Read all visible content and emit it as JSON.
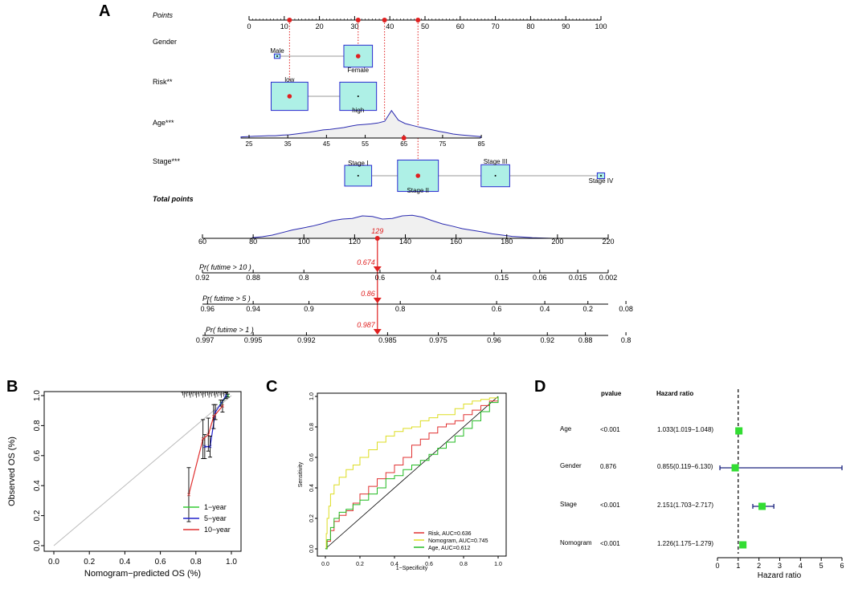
{
  "panel_labels": [
    "A",
    "B",
    "C",
    "D"
  ],
  "chart_data": [
    {
      "type": "nomogram",
      "panel": "A",
      "points_axis": {
        "label": "Points",
        "range": [
          0,
          100
        ],
        "ticks": [
          0,
          10,
          20,
          30,
          40,
          50,
          60,
          70,
          80,
          90,
          100
        ],
        "selected": [
          11.5,
          31,
          38.5,
          48
        ]
      },
      "variables": [
        {
          "name": "Gender",
          "levels": [
            {
              "label": "Male",
              "points": 8,
              "size": 0.02
            },
            {
              "label": "Female",
              "points": 31,
              "size": 0.3
            }
          ],
          "selected": "Female"
        },
        {
          "name": "Risk**",
          "levels": [
            {
              "label": "low",
              "points": 11.5,
              "size": 0.4
            },
            {
              "label": "high",
              "points": 31,
              "size": 0.4
            }
          ],
          "selected": "low"
        },
        {
          "name": "Age***",
          "axis": {
            "ticks": [
              25,
              35,
              45,
              55,
              65,
              75,
              85
            ],
            "points_at_min": 0,
            "points_at_max": 66
          },
          "selected": 65,
          "density": [
            0.04,
            0.05,
            0.06,
            0.07,
            0.08,
            0.08,
            0.1,
            0.11,
            0.14,
            0.17,
            0.2,
            0.24,
            0.28,
            0.3,
            0.33,
            0.36,
            0.41,
            0.45,
            0.47,
            0.49,
            0.52,
            0.58,
            0.95,
            0.62,
            0.5,
            0.44,
            0.38,
            0.33,
            0.28,
            0.23,
            0.19,
            0.14,
            0.11,
            0.09,
            0.07,
            0.05
          ]
        },
        {
          "name": "Stage***",
          "levels": [
            {
              "label": "Stage I",
              "points": 31,
              "size": 0.28
            },
            {
              "label": "Stage II",
              "points": 48,
              "size": 0.45
            },
            {
              "label": "Stage III",
              "points": 70,
              "size": 0.3
            },
            {
              "label": "Stage IV",
              "points": 100,
              "size": 0.04
            }
          ],
          "selected": "Stage II"
        }
      ],
      "total_points": {
        "label": "Total points",
        "ticks": [
          60,
          80,
          100,
          120,
          140,
          160,
          180,
          200,
          220
        ],
        "range": [
          60,
          220
        ],
        "selected": 129,
        "selected_label": "129",
        "density": [
          0.02,
          0.05,
          0.1,
          0.18,
          0.26,
          0.32,
          0.38,
          0.46,
          0.55,
          0.6,
          0.62,
          0.7,
          0.68,
          0.6,
          0.62,
          0.7,
          0.72,
          0.66,
          0.55,
          0.45,
          0.38,
          0.3,
          0.25,
          0.2,
          0.14,
          0.1,
          0.06,
          0.04,
          0.02,
          0.01,
          0.0,
          0.0
        ]
      },
      "probability_axes": [
        {
          "label": "Pr( futime > 10 )",
          "ticks": [
            {
              "v": "0.92",
              "t": 60
            },
            {
              "v": "0.88",
              "t": 80
            },
            {
              "v": "0.8",
              "t": 100
            },
            {
              "v": "0.6",
              "t": 130
            },
            {
              "v": "0.4",
              "t": 152
            },
            {
              "v": "0.15",
              "t": 178
            },
            {
              "v": "0.06",
              "t": 193
            },
            {
              "v": "0.015",
              "t": 208
            },
            {
              "v": "0.002",
              "t": 220
            }
          ],
          "selected_label": "0.674"
        },
        {
          "label": "Pr( futime > 5 )",
          "ticks": [
            {
              "v": "0.96",
              "t": 62
            },
            {
              "v": "0.94",
              "t": 80
            },
            {
              "v": "0.9",
              "t": 102
            },
            {
              "v": "0.8",
              "t": 138
            },
            {
              "v": "0.6",
              "t": 176
            },
            {
              "v": "0.4",
              "t": 195
            },
            {
              "v": "0.2",
              "t": 212
            },
            {
              "v": "0.08",
              "t": 227
            }
          ],
          "selected_label": "0.86"
        },
        {
          "label": "Pr( futime > 1 )",
          "ticks": [
            {
              "v": "0.997",
              "t": 61
            },
            {
              "v": "0.995",
              "t": 80
            },
            {
              "v": "0.992",
              "t": 101
            },
            {
              "v": "0.985",
              "t": 133
            },
            {
              "v": "0.975",
              "t": 153
            },
            {
              "v": "0.96",
              "t": 175
            },
            {
              "v": "0.92",
              "t": 196
            },
            {
              "v": "0.88",
              "t": 211
            },
            {
              "v": "0.8",
              "t": 227
            }
          ],
          "selected_label": "0.987"
        }
      ]
    },
    {
      "type": "line",
      "panel": "B",
      "xlabel": "Nomogram−predicted OS (%)",
      "ylabel": "Observed OS (%)",
      "xlim": [
        0,
        1
      ],
      "ylim": [
        0,
        1
      ],
      "xticks": [
        "0.0",
        "0.2",
        "0.4",
        "0.6",
        "0.8",
        "1.0"
      ],
      "yticks": [
        "0.0",
        "0.2",
        "0.4",
        "0.6",
        "0.8",
        "1.0"
      ],
      "series": [
        {
          "name": "1−year",
          "color": "#33cc33",
          "x": [
            0.94,
            0.98
          ],
          "y": [
            0.95,
            1.0
          ],
          "err": [
            0.02,
            0.01
          ]
        },
        {
          "name": "5−year",
          "color": "#2222cc",
          "x": [
            0.85,
            0.88,
            0.91,
            0.97
          ],
          "y": [
            0.66,
            0.66,
            0.89,
            1.0
          ],
          "err": [
            0.08,
            0.07,
            0.05,
            0.02
          ]
        },
        {
          "name": "10−year",
          "color": "#e03030",
          "x": [
            0.76,
            0.84,
            0.87,
            0.9,
            0.95
          ],
          "y": [
            0.34,
            0.71,
            0.74,
            0.86,
            0.93
          ],
          "err": [
            0.18,
            0.13,
            0.11,
            0.08,
            0.04
          ]
        }
      ],
      "legend_position": "bottom-right"
    },
    {
      "type": "line",
      "panel": "C",
      "xlabel": "1−Specificity",
      "ylabel": "Sensitivity",
      "xlim": [
        0,
        1
      ],
      "ylim": [
        0,
        1
      ],
      "xticks": [
        "0.0",
        "0.2",
        "0.4",
        "0.6",
        "0.8",
        "1.0"
      ],
      "yticks": [
        "0.0",
        "0.2",
        "0.4",
        "0.6",
        "0.8",
        "1.0"
      ],
      "series": [
        {
          "name": "Risk, AUC=0.636",
          "color": "#e03030",
          "x": [
            0,
            0.01,
            0.03,
            0.05,
            0.08,
            0.12,
            0.16,
            0.2,
            0.25,
            0.3,
            0.35,
            0.4,
            0.45,
            0.5,
            0.55,
            0.6,
            0.65,
            0.7,
            0.75,
            0.8,
            0.85,
            0.9,
            0.95,
            1.0
          ],
          "y": [
            0,
            0.05,
            0.12,
            0.18,
            0.22,
            0.25,
            0.3,
            0.36,
            0.41,
            0.46,
            0.5,
            0.55,
            0.6,
            0.68,
            0.72,
            0.76,
            0.8,
            0.82,
            0.84,
            0.88,
            0.91,
            0.94,
            0.97,
            1.0
          ]
        },
        {
          "name": "Nomogram, AUC=0.745",
          "color": "#dddd22",
          "x": [
            0,
            0.005,
            0.01,
            0.02,
            0.03,
            0.05,
            0.08,
            0.12,
            0.16,
            0.2,
            0.25,
            0.3,
            0.35,
            0.4,
            0.45,
            0.5,
            0.55,
            0.6,
            0.65,
            0.7,
            0.75,
            0.8,
            0.85,
            0.9,
            0.95,
            1.0
          ],
          "y": [
            0,
            0.1,
            0.2,
            0.28,
            0.36,
            0.42,
            0.47,
            0.52,
            0.55,
            0.6,
            0.65,
            0.7,
            0.74,
            0.77,
            0.79,
            0.8,
            0.84,
            0.86,
            0.88,
            0.88,
            0.92,
            0.95,
            0.97,
            0.98,
            0.99,
            1.0
          ]
        },
        {
          "name": "Age, AUC=0.612",
          "color": "#22bb22",
          "x": [
            0,
            0.01,
            0.03,
            0.05,
            0.08,
            0.12,
            0.16,
            0.2,
            0.25,
            0.3,
            0.35,
            0.4,
            0.45,
            0.5,
            0.55,
            0.6,
            0.65,
            0.7,
            0.75,
            0.8,
            0.85,
            0.9,
            0.95,
            1.0
          ],
          "y": [
            0,
            0.06,
            0.14,
            0.2,
            0.24,
            0.26,
            0.29,
            0.32,
            0.36,
            0.4,
            0.46,
            0.48,
            0.52,
            0.55,
            0.58,
            0.62,
            0.66,
            0.7,
            0.74,
            0.79,
            0.84,
            0.9,
            0.96,
            1.0
          ]
        }
      ],
      "legend_position": "bottom-right"
    },
    {
      "type": "forest",
      "panel": "D",
      "headers": {
        "pvalue": "pvalue",
        "hr": "Hazard ratio"
      },
      "xlabel": "Hazard ratio",
      "xlim": [
        0,
        6
      ],
      "xticks": [
        "0",
        "1",
        "2",
        "3",
        "4",
        "5",
        "6"
      ],
      "reference": 1,
      "rows": [
        {
          "name": "Age",
          "pvalue": "<0.001",
          "hr_text": "1.033(1.019−1.048)",
          "hr": 1.033,
          "lo": 1.019,
          "hi": 1.048
        },
        {
          "name": "Gender",
          "pvalue": "0.876",
          "hr_text": "0.855(0.119−6.130)",
          "hr": 0.855,
          "lo": 0.119,
          "hi": 6.13
        },
        {
          "name": "Stage",
          "pvalue": "<0.001",
          "hr_text": "2.151(1.703−2.717)",
          "hr": 2.151,
          "lo": 1.703,
          "hi": 2.717
        },
        {
          "name": "Nomogram",
          "pvalue": "<0.001",
          "hr_text": "1.226(1.175−1.279)",
          "hr": 1.226,
          "lo": 1.175,
          "hi": 1.279
        }
      ]
    }
  ],
  "colors": {
    "box_fill": "#aef0e6",
    "box_stroke": "#2a2ad0",
    "selected": "#e02020",
    "density_fill": "#f0f0f0",
    "density_line": "#2a2ab0",
    "forest_marker": "#33dd33",
    "forest_ci": "#1a237e"
  }
}
